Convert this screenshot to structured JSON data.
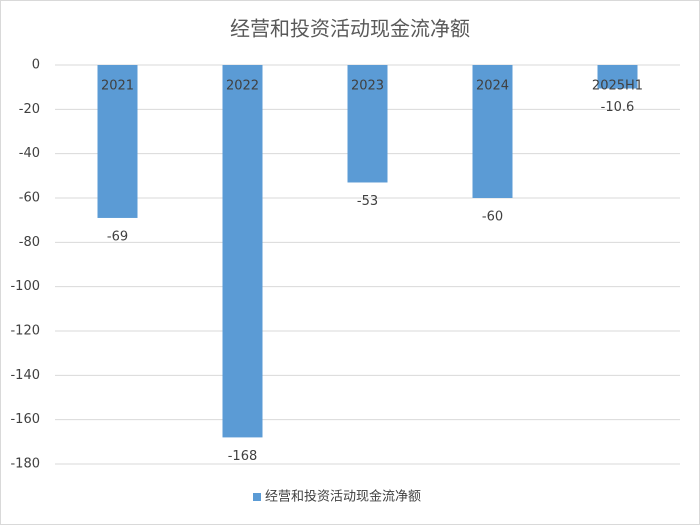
{
  "chart_data": {
    "type": "bar",
    "title": "经营和投资活动现金流净额",
    "categories": [
      "2021",
      "2022",
      "2023",
      "2024",
      "2025H1"
    ],
    "series": [
      {
        "name": "经营和投资活动现金流净额",
        "color": "#5b9bd5",
        "values": [
          -69,
          -168,
          -53,
          -60,
          -10.6
        ]
      }
    ],
    "ylim": [
      -180,
      0
    ],
    "yticks": [
      0,
      -20,
      -40,
      -60,
      -80,
      -100,
      -120,
      -140,
      -160,
      -180
    ],
    "grid": true,
    "legend": "bottom"
  }
}
